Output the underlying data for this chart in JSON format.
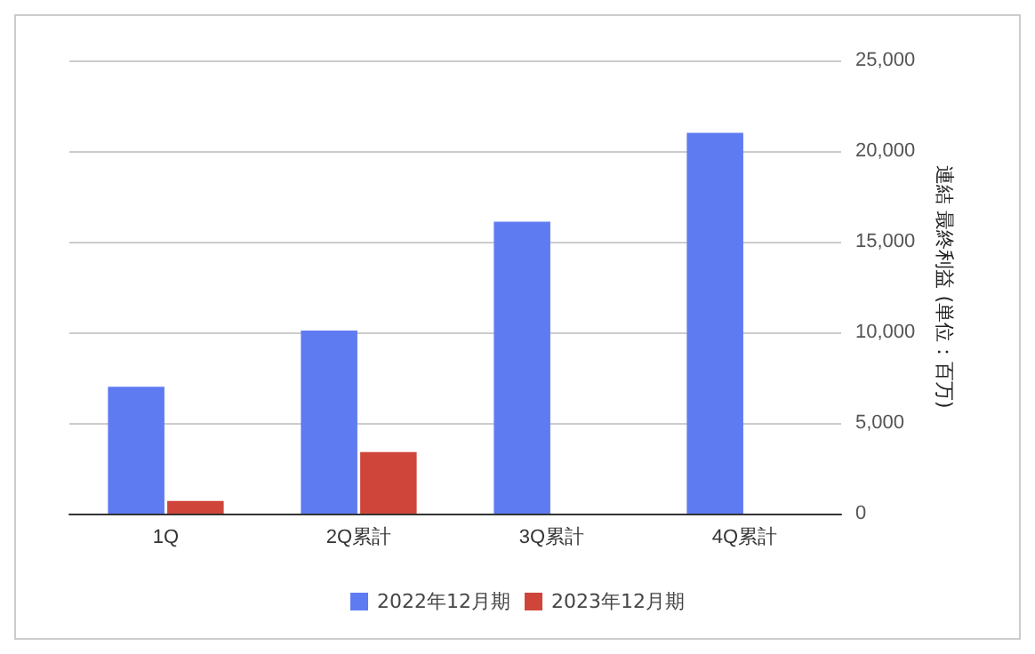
{
  "chart_data": {
    "type": "bar",
    "categories": [
      "1Q",
      "2Q累計",
      "3Q累計",
      "4Q累計"
    ],
    "series": [
      {
        "name": "2022年12月期",
        "color": "#5f7bf2",
        "values": [
          7000,
          10100,
          16100,
          21000
        ]
      },
      {
        "name": "2023年12月期",
        "color": "#d0453a",
        "values": [
          700,
          3400,
          null,
          null
        ]
      }
    ],
    "ylabel": "連結 最終利益 (単位：百万)",
    "ylim": [
      0,
      25000
    ],
    "yticks": [
      0,
      {
        "value": 5000,
        "label": "5,000"
      },
      {
        "value": 10000,
        "label": "10,000"
      },
      {
        "value": 15000,
        "label": "15,000"
      },
      {
        "value": 20000,
        "label": "20,000"
      },
      {
        "value": 25000,
        "label": "25,000"
      }
    ],
    "grid": "y",
    "legend": "bottom"
  }
}
